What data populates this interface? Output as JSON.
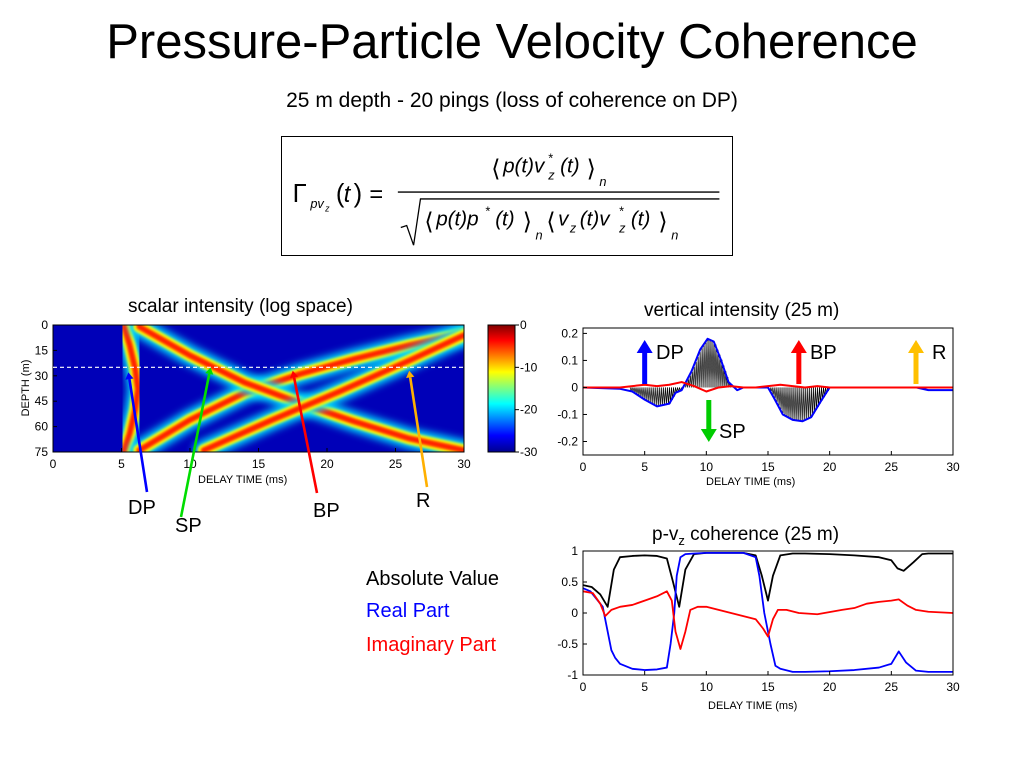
{
  "slide": {
    "title": "Pressure-Particle Velocity Coherence",
    "subtitle": "25 m depth - 20 pings (loss of coherence on DP)"
  },
  "formula": {
    "lhs_symbol": "Γ",
    "lhs_subscript": "pv",
    "lhs_subscript2": "z",
    "lhs_arg": "t",
    "numerator": "⟨p(t)v*z(t)⟩n",
    "denominator": "√(⟨p(t)p*(t)⟩n⟨vz(t)v*z(t)⟩n)"
  },
  "legend": {
    "absolute": "Absolute Value",
    "real": "Real Part",
    "imag": "Imaginary Part",
    "colors": {
      "absolute": "#000000",
      "real": "#0000ff",
      "imag": "#ff0000"
    }
  },
  "chart_data": [
    {
      "type": "heatmap",
      "title": "scalar intensity (log space)",
      "xlabel": "DELAY TIME (ms)",
      "ylabel": "DEPTH (m)",
      "xlim": [
        0,
        30
      ],
      "ylim": [
        75,
        0
      ],
      "xticks": [
        "0",
        "5",
        "10",
        "15",
        "20",
        "25",
        "30"
      ],
      "yticks": [
        "0",
        "15",
        "30",
        "45",
        "60",
        "75"
      ],
      "colorbar": {
        "ticks": [
          "0",
          "-10",
          "-20",
          "-30"
        ],
        "range": [
          0,
          -30
        ],
        "colormap": "jet"
      },
      "reference_depth_line": 25,
      "arrivals": [
        {
          "name": "DP",
          "label_color": "#0000ff",
          "x": [
            5.2,
            5.6,
            6.0,
            6.2,
            6.0,
            5.6,
            5.2
          ],
          "y": [
            1,
            12,
            26,
            38,
            50,
            64,
            74
          ]
        },
        {
          "name": "SP",
          "label_color": "#00cc00",
          "x": [
            6.3,
            10,
            14,
            18,
            22,
            26,
            30
          ],
          "y": [
            74,
            56,
            40,
            29,
            20,
            12,
            5
          ]
        },
        {
          "name": "BP",
          "label_color": "#ff0000",
          "x": [
            6.3,
            10,
            14,
            18,
            22,
            26,
            30
          ],
          "y": [
            1,
            18,
            34,
            46,
            57,
            67,
            74
          ]
        },
        {
          "name": "R",
          "label_color": "#ffb000",
          "x": [
            11,
            16,
            21,
            26,
            30
          ],
          "y": [
            74,
            56,
            39,
            21,
            6
          ]
        }
      ],
      "callouts": [
        {
          "label": "DP",
          "arrow_color": "#0000ff",
          "target": [
            5.5,
            28
          ]
        },
        {
          "label": "SP",
          "arrow_color": "#00dd00",
          "target": [
            11.5,
            25
          ]
        },
        {
          "label": "BP",
          "arrow_color": "#ff0000",
          "target": [
            17.5,
            27
          ]
        },
        {
          "label": "R",
          "arrow_color": "#ffb000",
          "target": [
            26,
            27
          ]
        }
      ]
    },
    {
      "type": "line",
      "title": "vertical intensity (25 m)",
      "xlabel": "DELAY TIME (ms)",
      "xlim": [
        0,
        30
      ],
      "ylim": [
        -0.25,
        0.22
      ],
      "xticks": [
        "0",
        "5",
        "10",
        "15",
        "20",
        "25",
        "30"
      ],
      "yticks": [
        "-0.2",
        "-0.1",
        "0",
        "0.1",
        "0.2"
      ],
      "grid": false,
      "series": [
        {
          "color": "#0000ff",
          "x": [
            0,
            3,
            4,
            5,
            6,
            7,
            7.5,
            8,
            8.8,
            9.5,
            10.1,
            10.6,
            11.2,
            11.8,
            12.5,
            13,
            14,
            15,
            15.5,
            16.2,
            17,
            17.8,
            18.5,
            19.3,
            20,
            21,
            24,
            26,
            27,
            28,
            29,
            30
          ],
          "y": [
            0,
            -0.005,
            -0.015,
            -0.045,
            -0.07,
            -0.06,
            -0.02,
            -0.01,
            0.06,
            0.14,
            0.18,
            0.17,
            0.1,
            0.02,
            -0.01,
            0,
            0,
            0,
            -0.04,
            -0.1,
            -0.12,
            -0.125,
            -0.11,
            -0.05,
            0,
            0,
            0,
            0,
            0,
            -0.01,
            -0.01,
            -0.01
          ]
        },
        {
          "color": "#ff0000",
          "x": [
            0,
            3,
            4,
            5,
            6,
            7,
            8,
            9,
            10,
            11,
            12,
            13,
            14,
            15,
            16,
            17,
            18,
            19,
            20,
            21,
            22,
            24,
            26,
            28,
            30
          ],
          "y": [
            0,
            0,
            0.005,
            0.01,
            0.005,
            0.01,
            0.02,
            0.005,
            -0.015,
            0,
            0.005,
            0,
            0,
            0.005,
            0.01,
            0.005,
            0,
            0.005,
            0,
            0,
            0,
            0,
            0,
            0,
            0
          ]
        }
      ],
      "callouts": [
        {
          "label": "DP",
          "arrow_color": "#0000ff",
          "direction": "up",
          "x": 5
        },
        {
          "label": "SP",
          "arrow_color": "#00cc00",
          "direction": "down",
          "x": 10.2
        },
        {
          "label": "BP",
          "arrow_color": "#ff0000",
          "direction": "up",
          "x": 17.5
        },
        {
          "label": "R",
          "arrow_color": "#ffc000",
          "direction": "up",
          "x": 27
        }
      ]
    },
    {
      "type": "line",
      "title": "p-v",
      "title_subscript": "z",
      "title_suffix": " coherence (25 m)",
      "xlabel": "DELAY TIME (ms)",
      "xlim": [
        0,
        30
      ],
      "ylim": [
        -1,
        1
      ],
      "xticks": [
        "0",
        "5",
        "10",
        "15",
        "20",
        "25",
        "30"
      ],
      "yticks": [
        "-1",
        "-0.5",
        "0",
        "0.5",
        "1"
      ],
      "grid": false,
      "series": [
        {
          "name": "Absolute Value",
          "color": "#000000",
          "x": [
            0,
            0.7,
            1.4,
            2.0,
            2.5,
            3,
            4,
            5,
            6,
            6.8,
            7.3,
            7.8,
            8.3,
            9,
            10,
            11,
            12,
            13,
            14,
            14.5,
            15,
            15.4,
            16,
            17,
            18,
            20,
            22,
            24,
            25,
            25.5,
            26,
            26.8,
            27.5,
            28,
            30
          ],
          "y": [
            0.45,
            0.42,
            0.3,
            0.1,
            0.7,
            0.9,
            0.92,
            0.93,
            0.92,
            0.88,
            0.5,
            0.1,
            0.7,
            0.95,
            0.97,
            0.97,
            0.97,
            0.97,
            0.93,
            0.6,
            0.2,
            0.6,
            0.93,
            0.96,
            0.96,
            0.95,
            0.93,
            0.9,
            0.85,
            0.72,
            0.68,
            0.82,
            0.95,
            0.96,
            0.96
          ]
        },
        {
          "name": "Real Part",
          "color": "#0000ff",
          "x": [
            0,
            0.6,
            1.2,
            1.6,
            2.0,
            2.3,
            2.6,
            3,
            4,
            5,
            6,
            6.8,
            7.1,
            7.4,
            7.6,
            7.9,
            8.3,
            9,
            10,
            11,
            12,
            13,
            14,
            14.3,
            14.7,
            15.2,
            15.6,
            16,
            17,
            18,
            20,
            22,
            24,
            25,
            25.6,
            26.2,
            27,
            28,
            30
          ],
          "y": [
            0.4,
            0.35,
            0.2,
            0.1,
            -0.3,
            -0.6,
            -0.72,
            -0.82,
            -0.9,
            -0.92,
            -0.91,
            -0.88,
            -0.5,
            0,
            0.6,
            0.9,
            0.95,
            0.96,
            0.97,
            0.97,
            0.97,
            0.97,
            0.9,
            0.6,
            0,
            -0.5,
            -0.85,
            -0.9,
            -0.95,
            -0.95,
            -0.94,
            -0.92,
            -0.88,
            -0.82,
            -0.62,
            -0.8,
            -0.93,
            -0.95,
            -0.95
          ]
        },
        {
          "name": "Imaginary Part",
          "color": "#ff0000",
          "x": [
            0,
            0.8,
            1.4,
            1.8,
            2.3,
            3,
            4,
            5,
            6,
            6.8,
            7.2,
            7.5,
            7.9,
            8.3,
            8.7,
            9.3,
            10,
            11,
            12,
            13,
            14,
            14.6,
            15,
            15.4,
            15.8,
            16.5,
            17.5,
            19,
            21,
            22,
            23,
            24,
            25,
            25.6,
            26.3,
            27,
            28,
            30
          ],
          "y": [
            0.35,
            0.32,
            0.15,
            -0.05,
            0.05,
            0.1,
            0.13,
            0.2,
            0.27,
            0.35,
            0.2,
            -0.3,
            -0.58,
            -0.3,
            0.05,
            0.1,
            0.1,
            0.05,
            0.0,
            -0.05,
            -0.1,
            -0.25,
            -0.38,
            -0.1,
            0.05,
            0.05,
            0.0,
            -0.02,
            0.05,
            0.08,
            0.15,
            0.18,
            0.2,
            0.22,
            0.12,
            0.05,
            0.02,
            0.0
          ]
        }
      ]
    }
  ]
}
